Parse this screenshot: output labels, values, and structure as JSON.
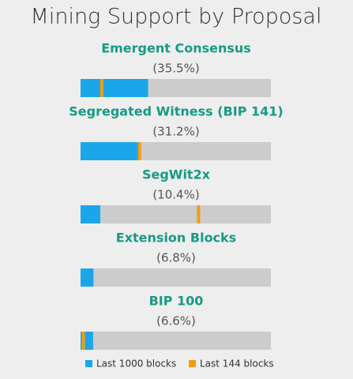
{
  "chart_data": {
    "type": "progress",
    "title": "Mining Support by Proposal",
    "categories": [
      "Emergent Consensus",
      "Segregated Witness (BIP 141)",
      "SegWit2x",
      "Extension Blocks",
      "BIP 100"
    ],
    "xlim": [
      0,
      100
    ],
    "series": [
      {
        "name": "Last 1000 blocks",
        "color": "#1ba6ea",
        "values": [
          35.5,
          31.2,
          10.4,
          6.8,
          6.6
        ],
        "value_labels": [
          "(35.5%)",
          "(31.2%)",
          "(10.4%)",
          "(6.8%)",
          "(6.6%)"
        ]
      },
      {
        "name": "Last 144 blocks",
        "color": "#f59b13",
        "values": [
          11.2,
          31,
          62,
          null,
          1.5
        ]
      }
    ],
    "track_color": "#cccccc",
    "name_color": "#169a84"
  }
}
